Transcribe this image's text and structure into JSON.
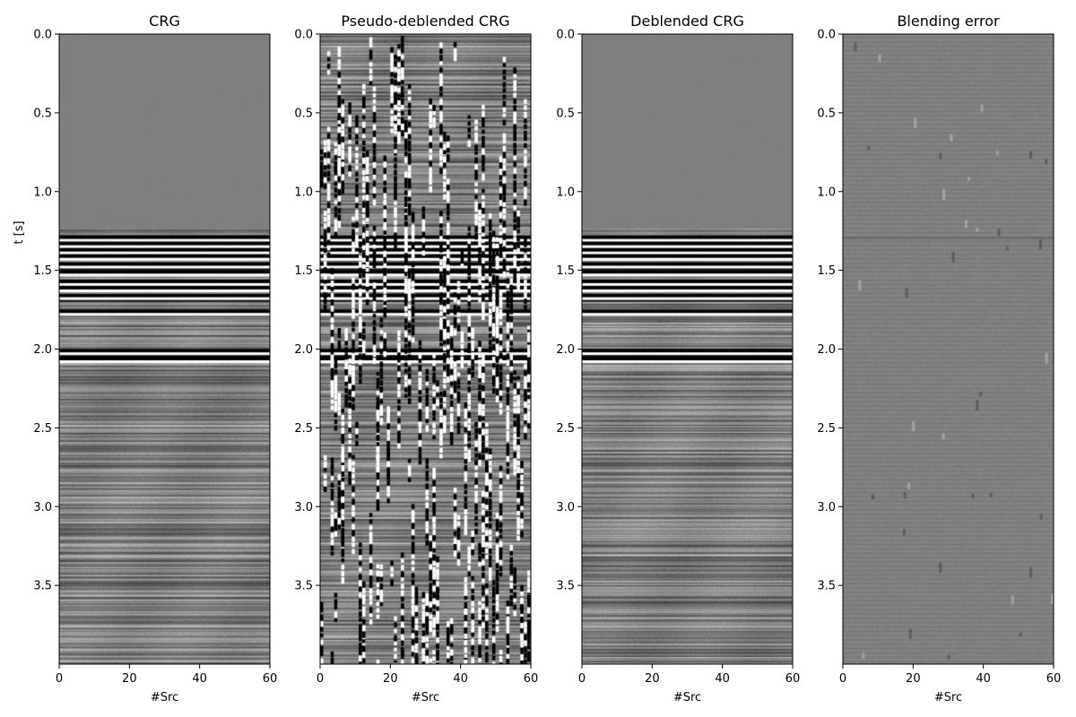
{
  "chart_data": [
    {
      "type": "heatmap",
      "title": "CRG",
      "xlabel": "#Src",
      "ylabel": "t [s]",
      "xlim": [
        0,
        60
      ],
      "ylim": [
        4.0,
        0.0
      ],
      "xticks": [
        0,
        20,
        40,
        60
      ],
      "yticks": [
        0.0,
        0.5,
        1.0,
        1.5,
        2.0,
        2.5,
        3.0,
        3.5
      ],
      "colormap": "gray",
      "onset_time": 1.23,
      "strong_events": [
        1.29,
        1.33,
        1.37,
        1.41,
        1.46,
        1.51,
        1.57,
        1.61,
        1.66,
        1.76,
        2.01,
        2.06
      ],
      "noise": "none",
      "texture": "layered"
    },
    {
      "type": "heatmap",
      "title": "Pseudo-deblended CRG",
      "xlabel": "#Src",
      "ylabel": "",
      "xlim": [
        0,
        60
      ],
      "ylim": [
        4.0,
        0.0
      ],
      "xticks": [
        0,
        20,
        40,
        60
      ],
      "yticks": [
        0.0,
        0.5,
        1.0,
        1.5,
        2.0,
        2.5,
        3.0,
        3.5
      ],
      "colormap": "gray",
      "onset_time": 0.0,
      "strong_events": [
        1.29,
        1.33,
        1.37,
        1.41,
        1.46,
        1.51,
        1.57,
        1.61,
        1.66,
        1.76,
        2.01,
        2.06
      ],
      "noise": "blending",
      "texture": "layered"
    },
    {
      "type": "heatmap",
      "title": "Deblended CRG",
      "xlabel": "#Src",
      "ylabel": "",
      "xlim": [
        0,
        60
      ],
      "ylim": [
        4.0,
        0.0
      ],
      "xticks": [
        0,
        20,
        40,
        60
      ],
      "yticks": [
        0.0,
        0.5,
        1.0,
        1.5,
        2.0,
        2.5,
        3.0,
        3.5
      ],
      "colormap": "gray",
      "onset_time": 1.23,
      "strong_events": [
        1.29,
        1.33,
        1.37,
        1.41,
        1.46,
        1.51,
        1.57,
        1.61,
        1.66,
        1.76,
        2.01,
        2.06
      ],
      "noise": "none",
      "texture": "layered"
    },
    {
      "type": "heatmap",
      "title": "Blending error",
      "xlabel": "#Src",
      "ylabel": "",
      "xlim": [
        0,
        60
      ],
      "ylim": [
        4.0,
        0.0
      ],
      "xticks": [
        0,
        20,
        40,
        60
      ],
      "yticks": [
        0.0,
        0.5,
        1.0,
        1.5,
        2.0,
        2.5,
        3.0,
        3.5
      ],
      "colormap": "gray",
      "onset_time": 0.0,
      "strong_events": [],
      "noise": "residual",
      "texture": "faint"
    }
  ]
}
